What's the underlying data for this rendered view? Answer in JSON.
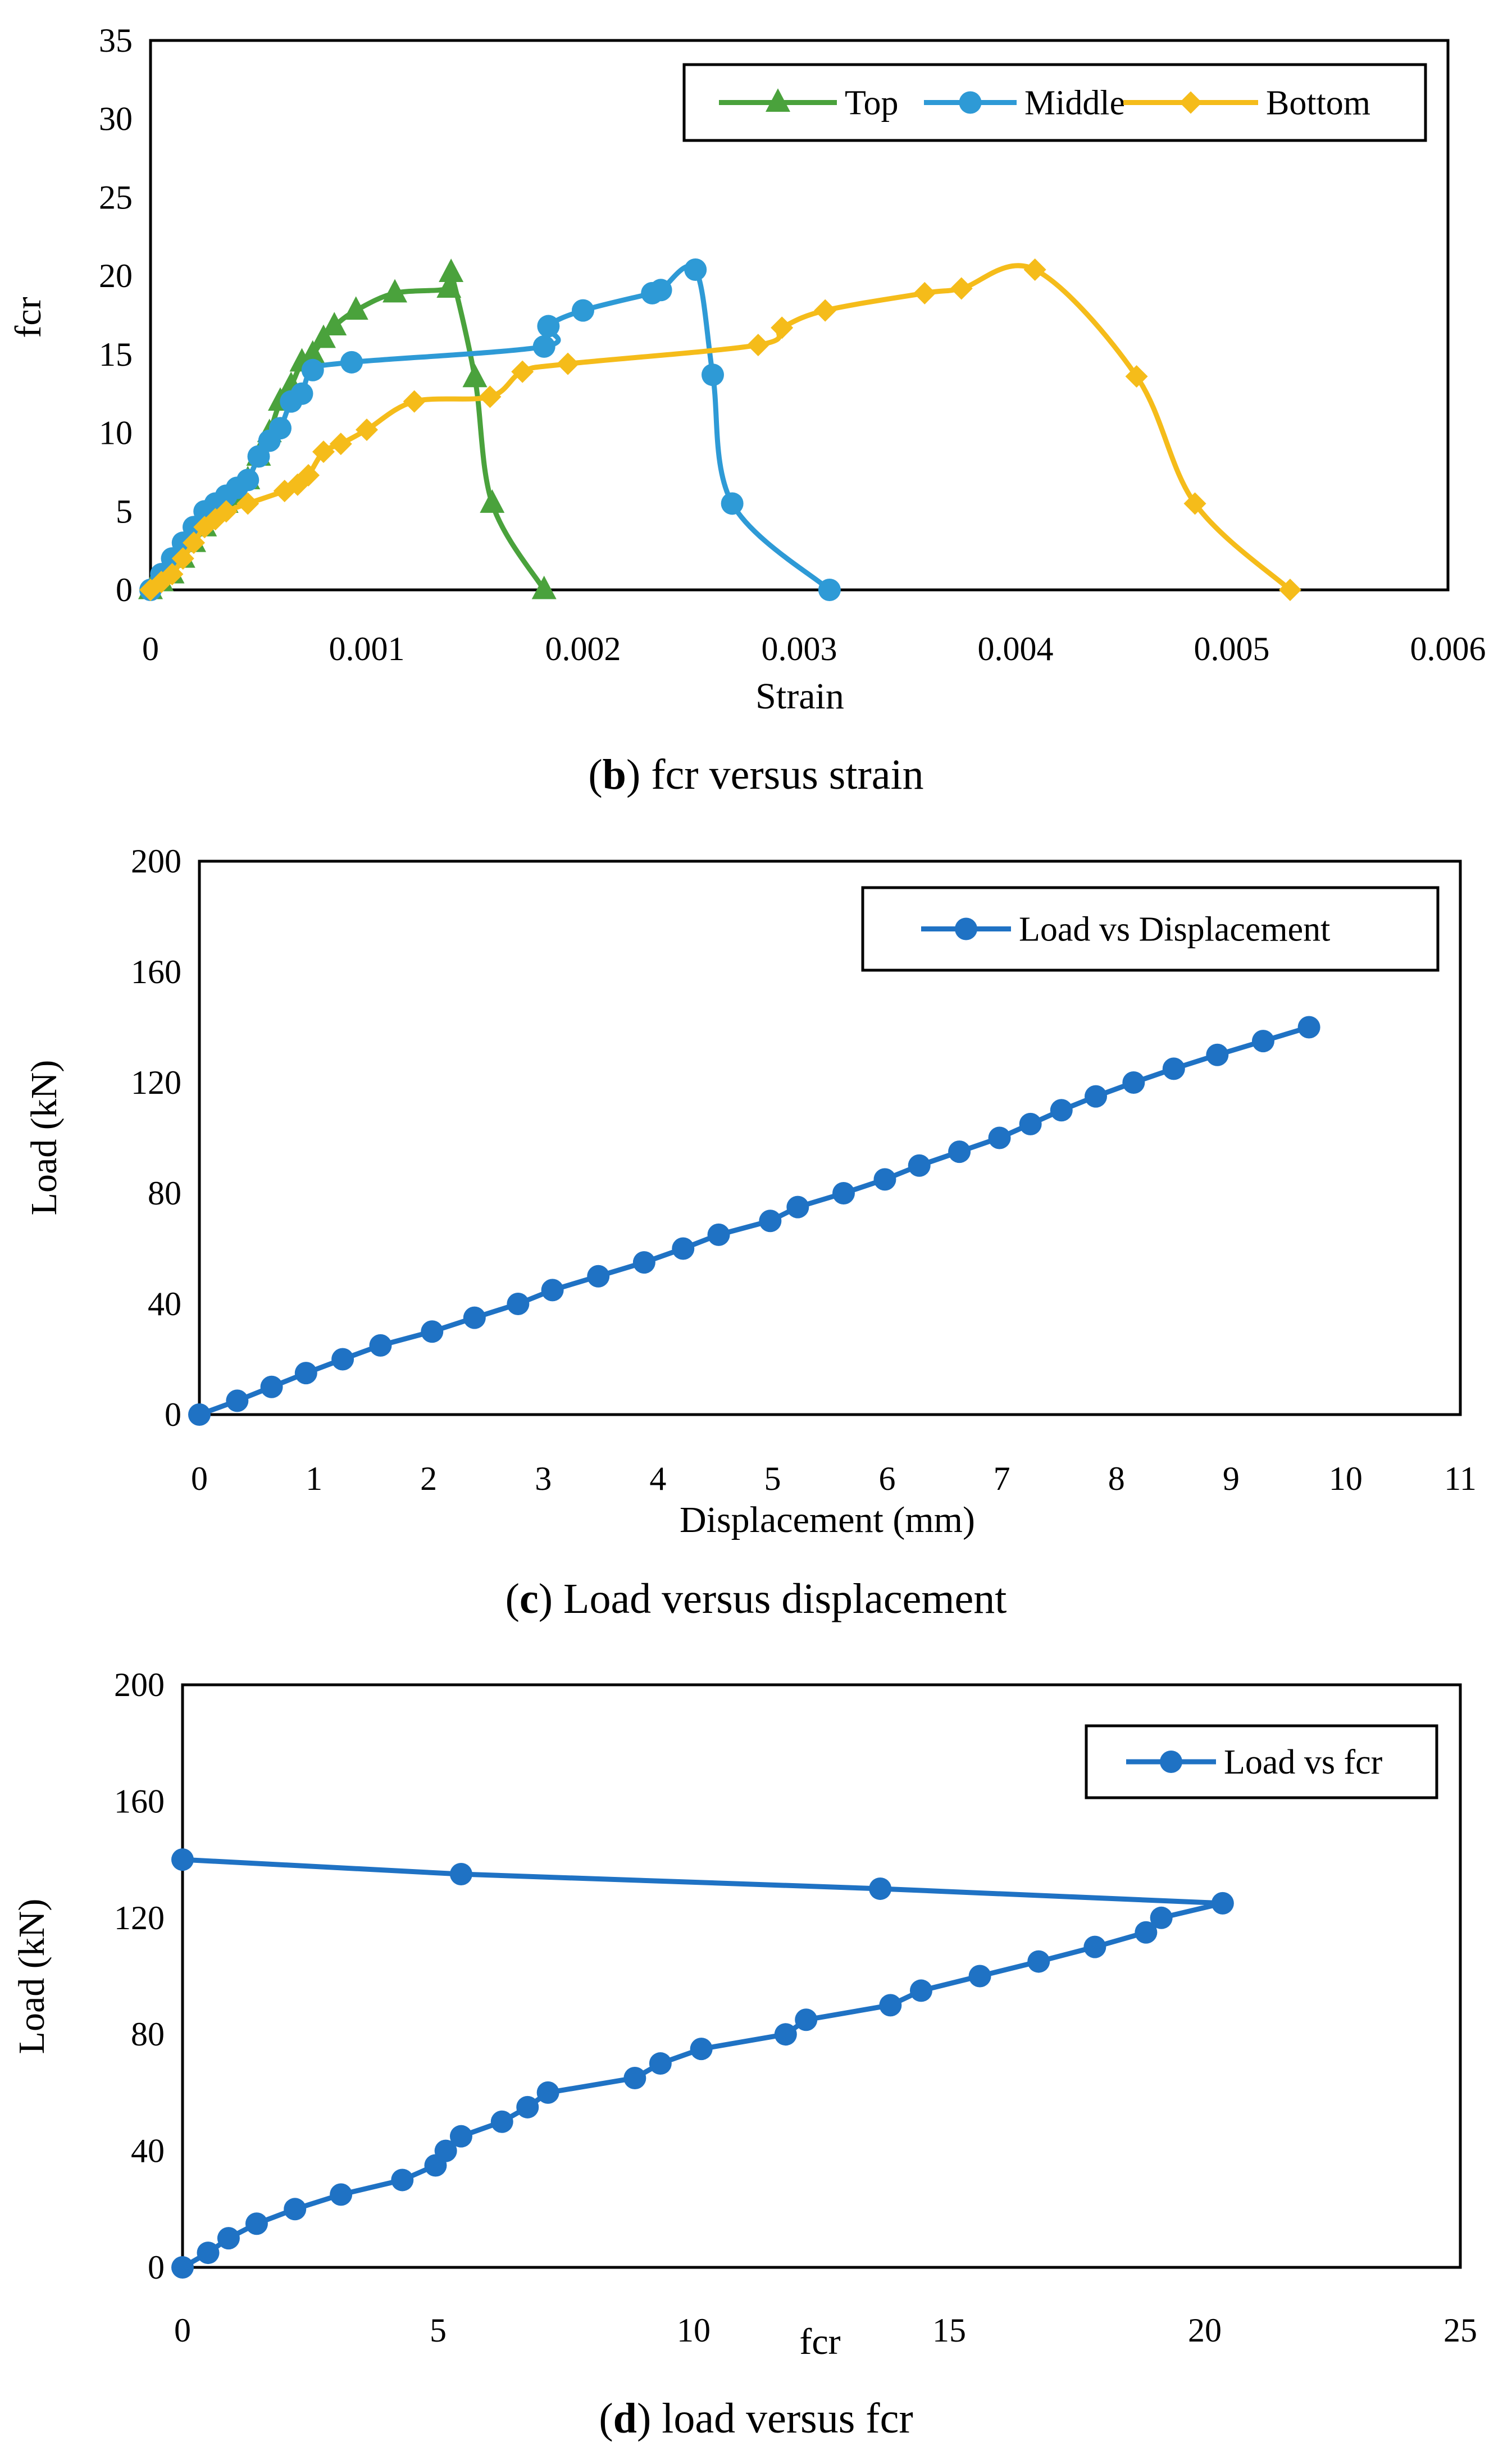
{
  "chart_data": [
    {
      "id": "b",
      "type": "line",
      "title": "fcr versus strain",
      "caption": {
        "letter": "b",
        "text": "fcr versus strain"
      },
      "xlabel": "Strain",
      "ylabel": "fcr",
      "xlim": [
        0,
        0.006
      ],
      "ylim": [
        0,
        35
      ],
      "xticks": [
        0,
        0.001,
        0.002,
        0.003,
        0.004,
        0.005,
        0.006
      ],
      "xtick_labels": [
        "0",
        "0.001",
        "0.002",
        "0.003",
        "0.004",
        "0.005",
        "0.006"
      ],
      "yticks": [
        0,
        5,
        10,
        15,
        20,
        25,
        30,
        35
      ],
      "ytick_labels": [
        "0",
        "5",
        "10",
        "15",
        "20",
        "25",
        "30",
        "35"
      ],
      "grid": false,
      "legend_position": "top-right",
      "series": [
        {
          "name": "Top",
          "color": "#4aa23c",
          "marker": "triangle",
          "smooth": true,
          "x": [
            0,
            5e-05,
            0.0001,
            0.00015,
            0.0002,
            0.00025,
            0.0003,
            0.00035,
            0.0004,
            0.00045,
            0.0005,
            0.00055,
            0.0006,
            0.00065,
            0.0007,
            0.00075,
            0.0008,
            0.00085,
            0.00095,
            0.00113,
            0.00138,
            0.00139,
            0.0015,
            0.00158,
            0.00182
          ],
          "y": [
            0,
            0.5,
            1.0,
            2.0,
            3.0,
            4.0,
            5.0,
            5.5,
            6.0,
            7.0,
            8.5,
            10.0,
            12.0,
            13.0,
            14.5,
            15.0,
            16.0,
            16.8,
            17.8,
            18.9,
            19.2,
            20.2,
            13.5,
            5.5,
            0
          ]
        },
        {
          "name": "Middle",
          "color": "#2e9ad6",
          "marker": "circle",
          "smooth": true,
          "x": [
            0,
            5e-05,
            0.0001,
            0.00015,
            0.0002,
            0.00025,
            0.0003,
            0.00035,
            0.0004,
            0.00045,
            0.0005,
            0.00055,
            0.0006,
            0.00065,
            0.0007,
            0.00075,
            0.00093,
            0.00182,
            0.00184,
            0.002,
            0.00232,
            0.00236,
            0.00252,
            0.0026,
            0.00269,
            0.00314
          ],
          "y": [
            0,
            1.0,
            2.0,
            3.0,
            4.0,
            5.0,
            5.5,
            6.0,
            6.5,
            7.0,
            8.5,
            9.5,
            10.3,
            12.0,
            12.5,
            14.0,
            14.5,
            15.5,
            16.8,
            17.8,
            18.9,
            19.1,
            20.4,
            13.7,
            5.5,
            0
          ]
        },
        {
          "name": "Bottom",
          "color": "#f5bc1a",
          "marker": "diamond",
          "smooth": true,
          "x": [
            0,
            5e-05,
            0.0001,
            0.00015,
            0.0002,
            0.00025,
            0.0003,
            0.00035,
            0.00045,
            0.00062,
            0.00068,
            0.00073,
            0.0008,
            0.00088,
            0.001,
            0.00122,
            0.00157,
            0.00172,
            0.00193,
            0.00281,
            0.00292,
            0.00312,
            0.00358,
            0.00375,
            0.00409,
            0.00456,
            0.00483,
            0.00527
          ],
          "y": [
            0,
            0.5,
            1.0,
            2.0,
            3.0,
            4.0,
            4.5,
            5.0,
            5.5,
            6.3,
            6.7,
            7.3,
            8.8,
            9.3,
            10.2,
            12.0,
            12.3,
            13.9,
            14.4,
            15.6,
            16.7,
            17.8,
            18.9,
            19.2,
            20.4,
            13.6,
            5.5,
            0
          ]
        }
      ]
    },
    {
      "id": "c",
      "type": "line",
      "title": "Load versus displacement",
      "caption": {
        "letter": "c",
        "text": "Load versus displacement"
      },
      "xlabel": "Displacement (mm)",
      "ylabel": "Load (kN)",
      "xlim": [
        0,
        11
      ],
      "ylim": [
        0,
        200
      ],
      "xticks": [
        0,
        1,
        2,
        3,
        4,
        5,
        6,
        7,
        8,
        9,
        10,
        11
      ],
      "xtick_labels": [
        "0",
        "1",
        "2",
        "3",
        "4",
        "5",
        "6",
        "7",
        "8",
        "9",
        "10",
        "11"
      ],
      "yticks": [
        0,
        40,
        80,
        120,
        160,
        200
      ],
      "ytick_labels": [
        "0",
        "40",
        "80",
        "120",
        "160",
        "200"
      ],
      "grid": false,
      "legend_position": "top-right",
      "series": [
        {
          "name": "Load vs Displacement",
          "color": "#1f72c4",
          "marker": "circle",
          "smooth": false,
          "x": [
            0,
            0.33,
            0.63,
            0.93,
            1.25,
            1.58,
            2.03,
            2.4,
            2.78,
            3.08,
            3.48,
            3.88,
            4.22,
            4.53,
            4.98,
            5.22,
            5.62,
            5.98,
            6.28,
            6.63,
            6.98,
            7.25,
            7.52,
            7.82,
            8.15,
            8.5,
            8.88,
            9.28,
            9.68
          ],
          "y": [
            0,
            5,
            10,
            15,
            20,
            25,
            30,
            35,
            40,
            45,
            50,
            55,
            60,
            65,
            70,
            75,
            80,
            85,
            90,
            95,
            100,
            105,
            110,
            115,
            120,
            125,
            130,
            135,
            140
          ]
        }
      ]
    },
    {
      "id": "d",
      "type": "line",
      "title": "load versus fcr",
      "caption": {
        "letter": "d",
        "text": "load versus fcr"
      },
      "xlabel": "fcr",
      "ylabel": "Load (kN)",
      "xlim": [
        0,
        25
      ],
      "ylim": [
        0,
        200
      ],
      "xticks": [
        0,
        5,
        10,
        15,
        20,
        25
      ],
      "xtick_labels": [
        "0",
        "5",
        "10",
        "15",
        "20",
        "25"
      ],
      "yticks": [
        0,
        40,
        80,
        120,
        160,
        200
      ],
      "ytick_labels": [
        "0",
        "40",
        "80",
        "120",
        "160",
        "200"
      ],
      "grid": false,
      "legend_position": "top-right",
      "series": [
        {
          "name": "Load vs fcr",
          "color": "#1f72c4",
          "marker": "circle",
          "smooth": false,
          "x": [
            0,
            0.5,
            0.9,
            1.45,
            2.2,
            3.1,
            4.3,
            4.95,
            5.15,
            5.45,
            6.25,
            6.75,
            7.15,
            8.85,
            9.35,
            10.15,
            11.8,
            12.2,
            13.85,
            14.45,
            15.6,
            16.75,
            17.85,
            18.85,
            19.15,
            20.35,
            13.65,
            5.45,
            0
          ],
          "y": [
            0,
            5,
            10,
            15,
            20,
            25,
            30,
            35,
            40,
            45,
            50,
            55,
            60,
            65,
            70,
            75,
            80,
            85,
            90,
            95,
            100,
            105,
            110,
            115,
            120,
            125,
            130,
            135,
            140
          ]
        }
      ]
    }
  ]
}
